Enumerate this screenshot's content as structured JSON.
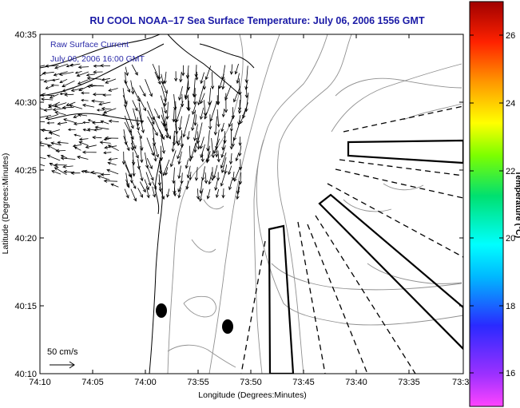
{
  "title": "RU COOL   NOAA–17  Sea Surface Temperature:  July 06, 2006 1556 GMT",
  "annotation": {
    "line1": "Raw Surface Current",
    "line2": "July 06, 2006 16:00 GMT"
  },
  "scale_label": "50 cm/s",
  "axes": {
    "xlabel": "Longitude (Degrees:Minutes)",
    "ylabel": "Latitude (Degrees:Minutes)",
    "xticks": [
      "74:10",
      "74:05",
      "74:00",
      "73:55",
      "73:50",
      "73:45",
      "73:40",
      "73:35",
      "73:3"
    ],
    "yticks": [
      "40:35",
      "40:30",
      "40:25",
      "40:20",
      "40:15",
      "40:10"
    ]
  },
  "colorbar": {
    "label": "Temperature (°C)",
    "ticks": [
      "26",
      "24",
      "22",
      "20",
      "18",
      "16"
    ],
    "range": [
      15,
      27.5
    ]
  },
  "map_features": {
    "markers": [
      "station-1",
      "station-2"
    ],
    "solid_outline_boxes": 3,
    "dashed_radials": 10,
    "current_vectors": "dense field of arrows near coast, northern region"
  },
  "colors": {
    "title": "#1a1aa6",
    "annotation": "#2a2aa8",
    "coastline": "#000000",
    "bathymetry": "#909090"
  }
}
